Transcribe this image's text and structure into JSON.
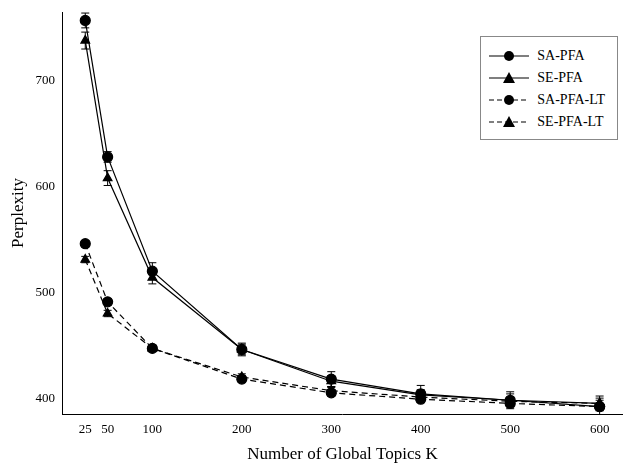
{
  "chart_data": {
    "type": "line",
    "x_label": "Number of Global Topics K",
    "y_label": "Perplexity",
    "x": [
      25,
      50,
      100,
      200,
      300,
      400,
      500,
      600
    ],
    "series": [
      {
        "name": "SA-PFA",
        "color": "#000000",
        "marker": "circle",
        "line_style": "solid",
        "values": [
          757,
          628,
          520,
          446,
          418,
          404,
          398,
          392
        ],
        "errors": [
          7,
          5,
          8,
          6,
          7,
          8,
          8,
          8
        ]
      },
      {
        "name": "SE-PFA",
        "color": "#000000",
        "marker": "triangle",
        "line_style": "solid",
        "values": [
          738,
          608,
          514,
          446,
          416,
          403,
          398,
          395
        ],
        "errors": [
          8,
          7,
          6,
          5,
          5,
          5,
          6,
          7
        ]
      },
      {
        "name": "SA-PFA-LT",
        "color": "#000000",
        "marker": "circle",
        "line_style": "dashed",
        "values": [
          546,
          491,
          447,
          418,
          405,
          399,
          395,
          392
        ],
        "errors": [
          3,
          3,
          3,
          3,
          3,
          3,
          3,
          3
        ]
      },
      {
        "name": "SE-PFA-LT",
        "color": "#000000",
        "marker": "triangle",
        "line_style": "dashed",
        "values": [
          531,
          480,
          447,
          420,
          407,
          401,
          397,
          395
        ],
        "errors": [
          3,
          3,
          3,
          3,
          3,
          3,
          3,
          3
        ]
      }
    ],
    "xlim": [
      0,
      625
    ],
    "xticks": [
      25,
      50,
      100,
      200,
      300,
      400,
      500,
      600
    ],
    "ylim": [
      385,
      765
    ],
    "yticks": [
      400,
      500,
      600,
      700
    ],
    "grid": false,
    "legend": "top-right"
  }
}
